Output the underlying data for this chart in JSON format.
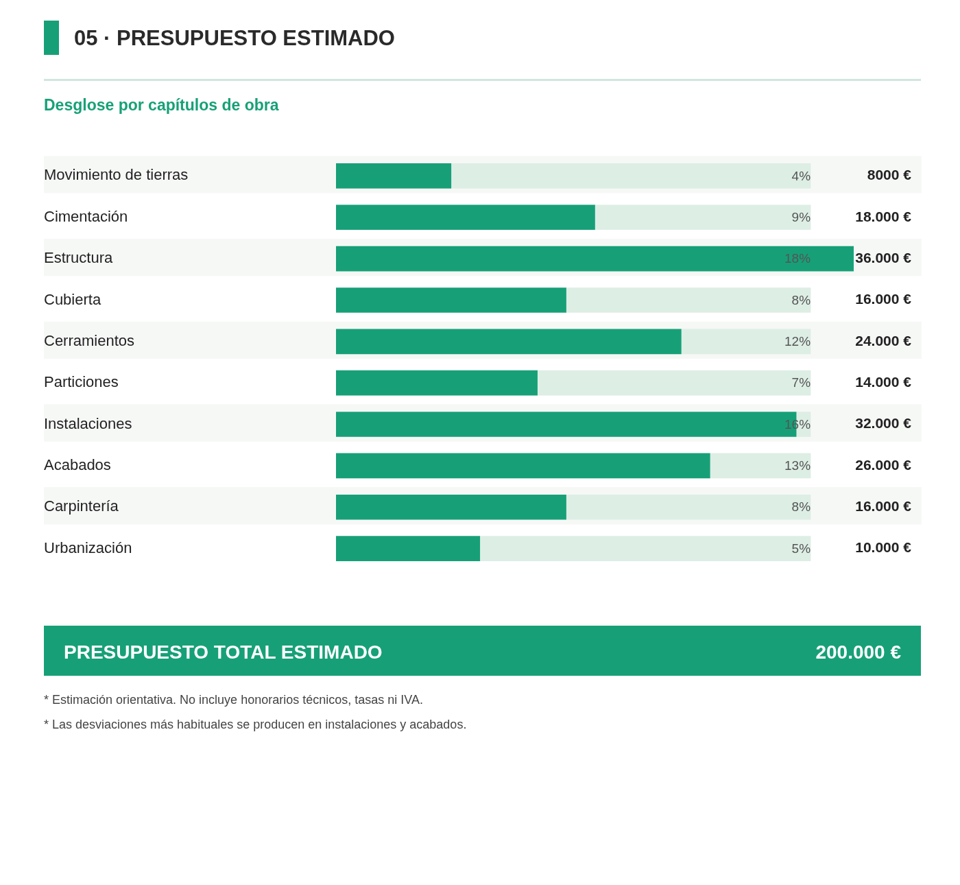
{
  "chart_data": {
    "type": "bar",
    "orientation": "horizontal",
    "title": "05 · PRESUPUESTO ESTIMADO",
    "subtitle": "Desglose por capítulos de obra",
    "categories": [
      "Movimiento de tierras",
      "Cimentación",
      "Estructura",
      "Cubierta",
      "Cerramientos",
      "Particiones",
      "Instalaciones",
      "Acabados",
      "Carpintería",
      "Urbanización"
    ],
    "stacked": true,
    "series": [
      {
        "color": "#17a077",
        "values": [
          8000,
          18000,
          36000,
          16000,
          24000,
          14000,
          32000,
          26000,
          16000,
          10000
        ],
        "value_labels": [
          "8000 €",
          "18.000 €",
          "36.000 €",
          "16.000 €",
          "24.000 €",
          "14.000 €",
          "32.000 €",
          "26.000 €",
          "16.000 €",
          "10.000 €"
        ]
      },
      {
        "color": "#ddeee5",
        "values": [
          25000,
          15000,
          null,
          17000,
          9000,
          19000,
          1000,
          7000,
          17000,
          23000
        ]
      }
    ],
    "annotations": [
      "4%",
      "9%",
      "18%",
      "8%",
      "12%",
      "7%",
      "16%",
      "13%",
      "8%",
      "5%",
      "PRESUPUESTO TOTAL ESTIMADO",
      "200.000 €",
      "* Estimación orientativa. No incluye honorarios técnicos, tasas ni IVA.",
      "* Las desviaciones más habituales se producen en instalaciones y acabados."
    ]
  }
}
